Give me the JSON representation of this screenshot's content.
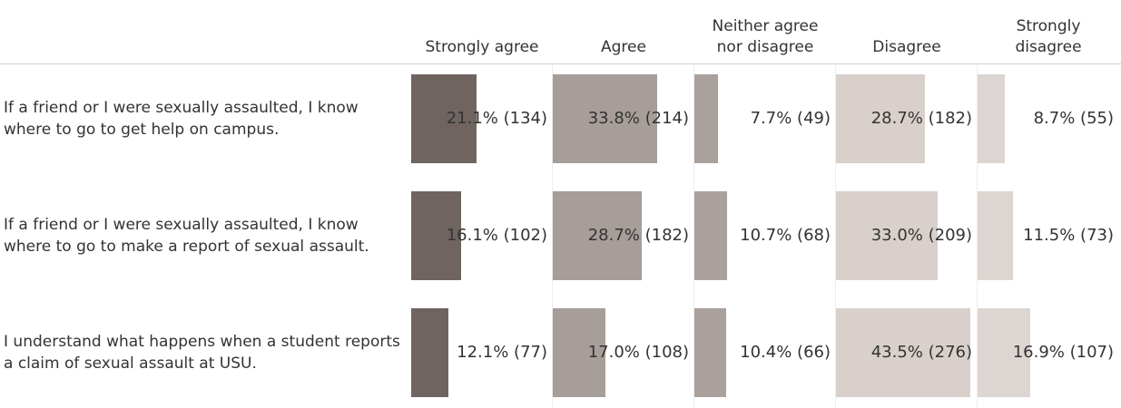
{
  "chart_data": {
    "type": "bar",
    "categories": [
      "If a friend or I were sexually assaulted, I know where to go to get help on campus.",
      "If a friend or I were sexually assaulted, I know where to go to make a report of sexual assault.",
      "I understand what happens when a student reports a claim of sexual assault at USU."
    ],
    "series": [
      {
        "name": "Strongly agree",
        "color": "#706460",
        "values": [
          21.1,
          16.1,
          12.1
        ],
        "value_labels": [
          "21.1% (134)",
          "16.1% (102)",
          "12.1% (77)"
        ]
      },
      {
        "name": "Agree",
        "color": "#a79d99",
        "values": [
          33.8,
          28.7,
          17.0
        ],
        "value_labels": [
          "33.8% (214)",
          "28.7% (182)",
          "17.0% (108)"
        ]
      },
      {
        "name": "Neither agree nor disagree",
        "color": "#aaa19d",
        "values": [
          7.7,
          10.7,
          10.4
        ],
        "value_labels": [
          "7.7% (49)",
          "10.7% (68)",
          "10.4% (66)"
        ]
      },
      {
        "name": "Disagree",
        "color": "#d9d0cc",
        "values": [
          28.7,
          33.0,
          43.5
        ],
        "value_labels": [
          "28.7% (182)",
          "33.0% (209)",
          "43.5% (276)"
        ]
      },
      {
        "name": "Strongly disagree",
        "color": "#ddd5d1",
        "values": [
          8.7,
          11.5,
          16.9
        ],
        "value_labels": [
          "8.7% (55)",
          "11.5% (73)",
          "16.9% (107)"
        ]
      }
    ]
  }
}
